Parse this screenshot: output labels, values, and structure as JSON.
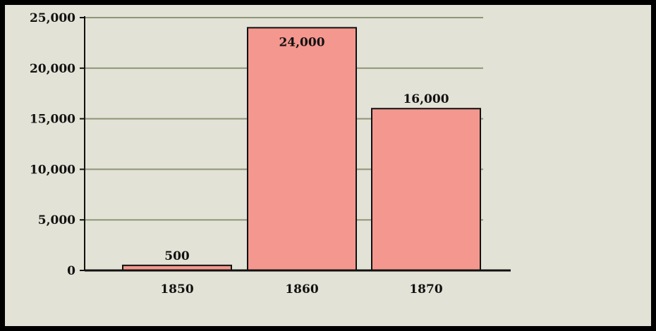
{
  "chart_data": {
    "type": "bar",
    "categories": [
      "1850",
      "1860",
      "1870"
    ],
    "values": [
      500,
      24000,
      16000
    ],
    "data_labels": [
      "500",
      "24,000",
      "16,000"
    ],
    "ylim": [
      0,
      25000
    ],
    "yticks": [
      0,
      5000,
      10000,
      15000,
      20000,
      25000
    ],
    "ytick_labels": [
      "0",
      "5,000",
      "10,000",
      "15,000",
      "20,000",
      "25,000"
    ],
    "title": "",
    "xlabel": "",
    "ylabel": "",
    "grid": true,
    "colors": {
      "bar": "#f4978e",
      "bar_stroke": "#111111",
      "grid": "#8d9677",
      "axis": "#111111",
      "background": "#e3e2d6",
      "border": "#000000"
    }
  }
}
